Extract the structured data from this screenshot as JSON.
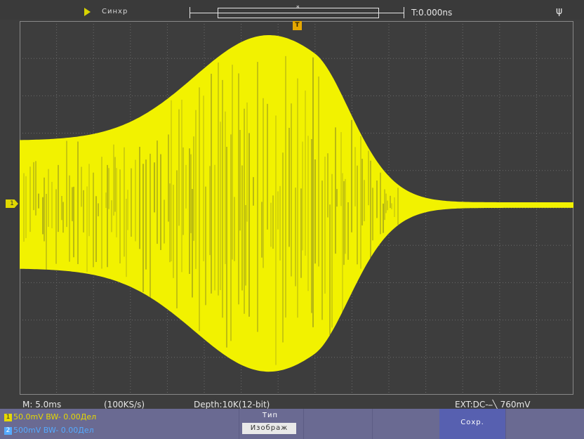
{
  "topbar": {
    "run_icon": "play-triangle-icon",
    "mode_label": "Синхр",
    "buffer_marker": "*",
    "trigger_time": "T:0.000ns",
    "usb_icon": "usb-icon",
    "trigger_marker": "T"
  },
  "channel_marker": "1",
  "status": {
    "timebase": "M: 5.0ms",
    "sample_rate": "(100KS/s)",
    "depth": "Depth:10K(12-bit)",
    "trigger": "EXT:DC-⎯╲ 760mV"
  },
  "channels": [
    {
      "num": "1",
      "text": "50.0mV BW-  0.00Дел",
      "color": "#e6d800"
    },
    {
      "num": "2",
      "text": "500mV BW-  0.00Дел",
      "color": "#55aaff"
    }
  ],
  "menu": {
    "type_title": "Тип",
    "type_value": "Изображ",
    "save_label": "Сохр."
  },
  "colors": {
    "trace": "#f2f200",
    "grid": "#6a6a6a",
    "background": "#3d3d3d",
    "menu": "#6a6a92",
    "save_button": "#5760b0"
  }
}
